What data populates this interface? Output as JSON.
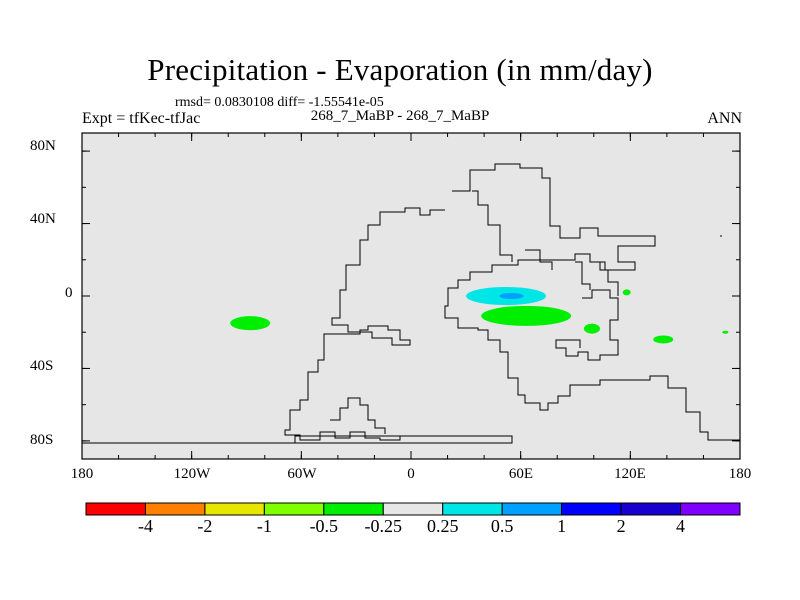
{
  "header": {
    "title": "Precipitation - Evaporation (in mm/day)",
    "stats": "rmsd= 0.0830108 diff= -1.55541e-05",
    "run": "268_7_MaBP - 268_7_MaBP",
    "expt": "Expt = tfKec-tfJac",
    "season": "ANN"
  },
  "chart_data": {
    "type": "heatmap",
    "title": "Precipitation - Evaporation (in mm/day)",
    "xlim": [
      -180,
      180
    ],
    "ylim": [
      -90,
      90
    ],
    "x_ticks": [
      "180",
      "120W",
      "60W",
      "0",
      "60E",
      "120E",
      "180"
    ],
    "y_ticks": [
      "80N",
      "40N",
      "0",
      "40S",
      "80S"
    ],
    "colorbar": {
      "colors": [
        "#ff0000",
        "#ff8000",
        "#e6e600",
        "#80ff00",
        "#00ee00",
        "#e6e6e6",
        "#00e6e6",
        "#00a0ff",
        "#0000ff",
        "#1a00d0",
        "#8000ff"
      ],
      "labels": [
        "-4",
        "-2",
        "-1",
        "-0.5",
        "-0.25",
        "0.25",
        "0.5",
        "1",
        "2",
        "4"
      ]
    },
    "features": [
      {
        "name": "positive anomaly",
        "color": "#00e6e6",
        "lon": 52,
        "lat": 0,
        "value": 0.5
      },
      {
        "name": "positive anomaly core",
        "color": "#00a0ff",
        "lon": 55,
        "lat": 0,
        "value": 1
      },
      {
        "name": "negative anomaly",
        "color": "#00ee00",
        "lon": 63,
        "lat": -11,
        "value": -0.25
      },
      {
        "name": "negative anomaly",
        "color": "#00ee00",
        "lon": -88,
        "lat": -15,
        "value": -0.25
      },
      {
        "name": "negative anomaly",
        "color": "#00ee00",
        "lon": 99,
        "lat": -18,
        "value": -0.25
      },
      {
        "name": "negative anomaly",
        "color": "#00ee00",
        "lon": 138,
        "lat": -24,
        "value": -0.25
      },
      {
        "name": "negative anomaly",
        "color": "#00ee00",
        "lon": 118,
        "lat": 2,
        "value": -0.25
      },
      {
        "name": "negative anomaly",
        "color": "#00ee00",
        "lon": 172,
        "lat": -20,
        "value": -0.25
      }
    ]
  }
}
